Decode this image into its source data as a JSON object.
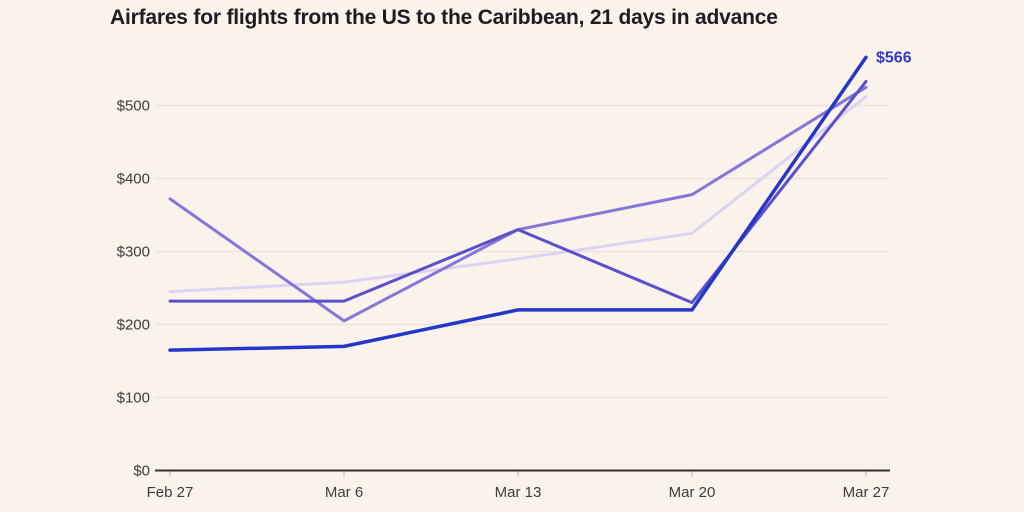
{
  "page": {
    "background": "#faf3ec"
  },
  "chart_data": {
    "type": "line",
    "title": "Airfares for flights from the US to the Caribbean, 21 days in advance",
    "categories": [
      "Feb 27",
      "Mar 6",
      "Mar 13",
      "Mar 20",
      "Mar 27"
    ],
    "series": [
      {
        "name": "lavender-line",
        "color": "#dbd3f3",
        "width": 3,
        "values": [
          245,
          258,
          290,
          325,
          512
        ]
      },
      {
        "name": "purple-line",
        "color": "#8577d7",
        "width": 3,
        "values": [
          372,
          205,
          330,
          378,
          525
        ]
      },
      {
        "name": "indigo-line",
        "color": "#5b4fca",
        "width": 3,
        "values": [
          232,
          232,
          330,
          230,
          533
        ]
      },
      {
        "name": "dark-blue-line",
        "color": "#2636c9",
        "width": 3.5,
        "values": [
          165,
          170,
          220,
          220,
          566
        ]
      }
    ],
    "xlabel": "",
    "ylabel": "",
    "ylim": [
      0,
      600
    ],
    "y_ticks": [
      {
        "value": 0,
        "label": "$0"
      },
      {
        "value": 100,
        "label": "$100"
      },
      {
        "value": 200,
        "label": "$200"
      },
      {
        "value": 300,
        "label": "$300"
      },
      {
        "value": 400,
        "label": "$400"
      },
      {
        "value": 500,
        "label": "$500"
      }
    ],
    "grid": true,
    "legend": "none",
    "annotation": {
      "text": "$566",
      "series": "dark-blue-line",
      "point_index": 4,
      "color": "#2e3cc2"
    }
  },
  "colors": {
    "gridline": "#eae4dd",
    "axis_line": "#36322e",
    "minor_tick": "#d8cfc6",
    "tick_label": "#3f3c39",
    "title": "#1d1c21"
  }
}
